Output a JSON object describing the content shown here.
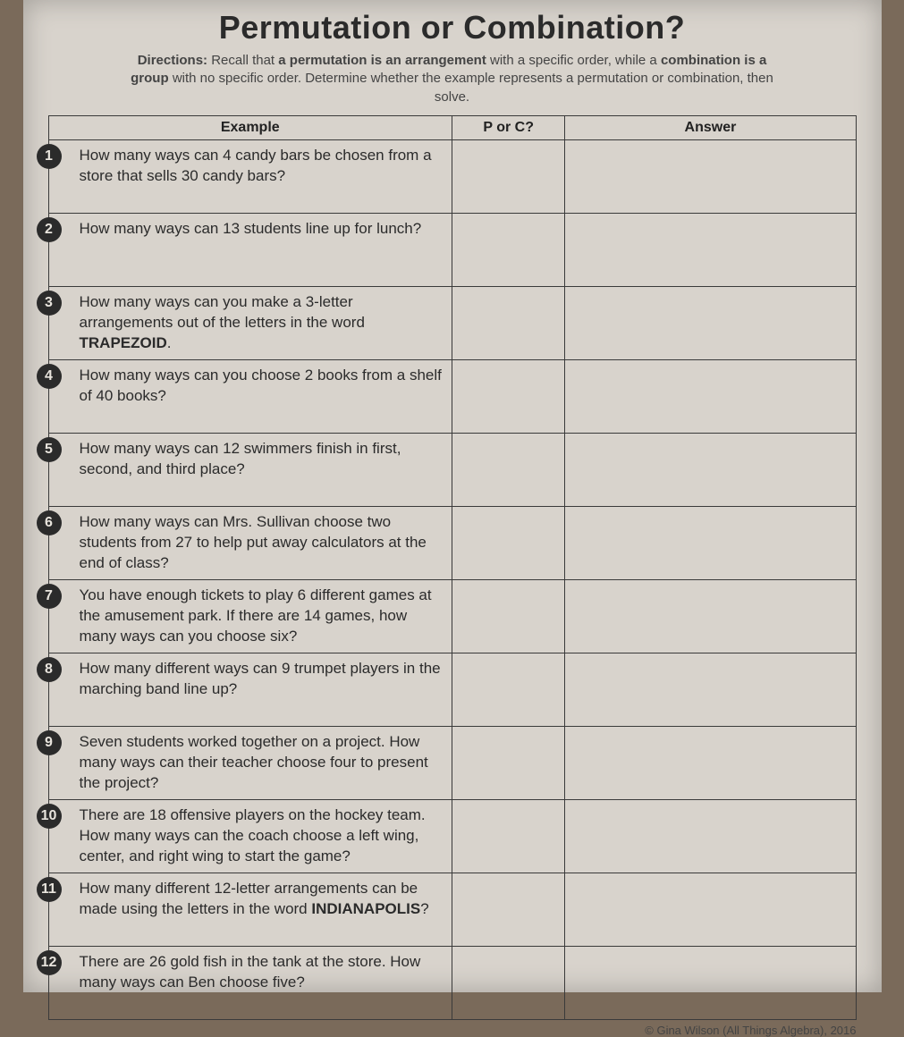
{
  "title": "Permutation or Combination?",
  "directions": {
    "label": "Directions:",
    "part1": "Recall that",
    "strong1": "a permutation is an arrangement",
    "part2": "with a specific order, while a",
    "strong2": "combination is a group",
    "part3": "with no specific order.  Determine whether the example represents a permutation or combination, then solve."
  },
  "headers": {
    "example": "Example",
    "porc": "P or C?",
    "answer": "Answer"
  },
  "rows": [
    {
      "n": "1",
      "text": "How many ways can 4 candy bars be chosen from a store that sells 30 candy bars?"
    },
    {
      "n": "2",
      "text": "How many ways can 13 students line up for lunch?"
    },
    {
      "n": "3",
      "text": "How many ways can you make a 3-letter arrangements out of the letters in the word ",
      "bold": "TRAPEZOID",
      "after": "."
    },
    {
      "n": "4",
      "text": "How many ways can you choose 2 books from a shelf of 40 books?"
    },
    {
      "n": "5",
      "text": "How many ways can 12 swimmers finish in first, second, and third place?"
    },
    {
      "n": "6",
      "text": "How many ways can Mrs. Sullivan choose two students from 27 to help put away calculators at the end of class?"
    },
    {
      "n": "7",
      "text": "You have enough tickets to play 6 different games at the amusement park.  If there are 14 games, how many ways can you choose six?"
    },
    {
      "n": "8",
      "text": "How many different ways can 9 trumpet players in the marching band line up?"
    },
    {
      "n": "9",
      "text": "Seven students worked together on a project.  How many ways can their teacher choose four to present the project?"
    },
    {
      "n": "10",
      "text": "There are 18 offensive players on the hockey team.  How many ways can the coach choose a left wing, center, and right wing to start the game?"
    },
    {
      "n": "11",
      "text": "How many different 12-letter arrangements can be made using the letters in the word ",
      "bold": "INDIANAPOLIS",
      "after": "?"
    },
    {
      "n": "12",
      "text": "There are 26 gold fish in the tank at the store.  How many ways can Ben choose five?"
    }
  ],
  "copyright": "© Gina Wilson (All Things Algebra), 2016"
}
